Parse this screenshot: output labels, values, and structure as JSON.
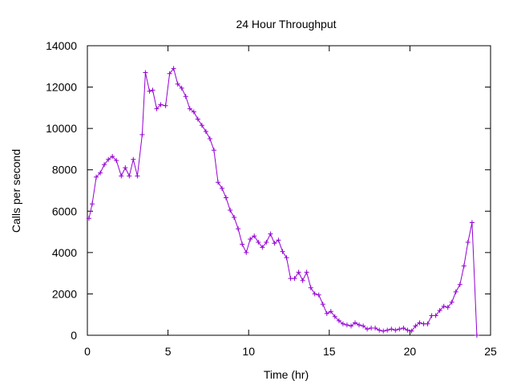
{
  "chart_data": {
    "type": "line",
    "title": "24 Hour Throughput",
    "xlabel": "Time (hr)",
    "ylabel": "Calls per second",
    "xlim": [
      0,
      25
    ],
    "ylim": [
      0,
      14000
    ],
    "xticks": [
      0,
      5,
      10,
      15,
      20,
      25
    ],
    "yticks": [
      0,
      2000,
      4000,
      6000,
      8000,
      10000,
      12000,
      14000
    ],
    "grid": false,
    "legend": "none",
    "series": [
      {
        "color": "#9400d3",
        "marker": "plus",
        "x": [
          0.1,
          0.3,
          0.55,
          0.8,
          1.05,
          1.3,
          1.55,
          1.8,
          2.1,
          2.35,
          2.6,
          2.85,
          3.1,
          3.4,
          3.6,
          3.85,
          4.05,
          4.3,
          4.55,
          4.85,
          5.1,
          5.35,
          5.6,
          5.85,
          6.1,
          6.35,
          6.6,
          6.85,
          7.1,
          7.35,
          7.6,
          7.85,
          8.1,
          8.35,
          8.6,
          8.85,
          9.1,
          9.35,
          9.6,
          9.85,
          10.1,
          10.35,
          10.6,
          10.85,
          11.1,
          11.35,
          11.6,
          11.85,
          12.1,
          12.35,
          12.6,
          12.85,
          13.1,
          13.35,
          13.6,
          13.85,
          14.1,
          14.35,
          14.6,
          14.85,
          15.1,
          15.35,
          15.6,
          15.85,
          16.1,
          16.35,
          16.6,
          16.85,
          17.1,
          17.35,
          17.6,
          17.85,
          18.1,
          18.35,
          18.6,
          18.85,
          19.1,
          19.35,
          19.6,
          19.85,
          20.1,
          20.35,
          20.6,
          20.85,
          21.1,
          21.35,
          21.6,
          21.85,
          22.1,
          22.35,
          22.6,
          22.85,
          23.1,
          23.35,
          23.6,
          23.85,
          24.15
        ],
        "y": [
          5650,
          6350,
          7650,
          7850,
          8250,
          8500,
          8650,
          8450,
          7700,
          8100,
          7700,
          8500,
          7700,
          9700,
          12700,
          11800,
          11850,
          10950,
          11150,
          11100,
          12650,
          12900,
          12150,
          11950,
          11550,
          10950,
          10800,
          10450,
          10150,
          9850,
          9500,
          8950,
          7400,
          7100,
          6650,
          6050,
          5700,
          5150,
          4400,
          4000,
          4650,
          4800,
          4500,
          4250,
          4500,
          4900,
          4450,
          4600,
          4050,
          3750,
          2750,
          2750,
          3050,
          2650,
          3050,
          2300,
          2000,
          1950,
          1500,
          1050,
          1150,
          900,
          700,
          550,
          500,
          450,
          600,
          500,
          450,
          300,
          350,
          350,
          250,
          200,
          250,
          300,
          250,
          300,
          350,
          250,
          200,
          450,
          600,
          550,
          550,
          950,
          950,
          1200,
          1400,
          1350,
          1600,
          2100,
          2450,
          3350,
          4500,
          5450,
          -50
        ]
      }
    ]
  }
}
